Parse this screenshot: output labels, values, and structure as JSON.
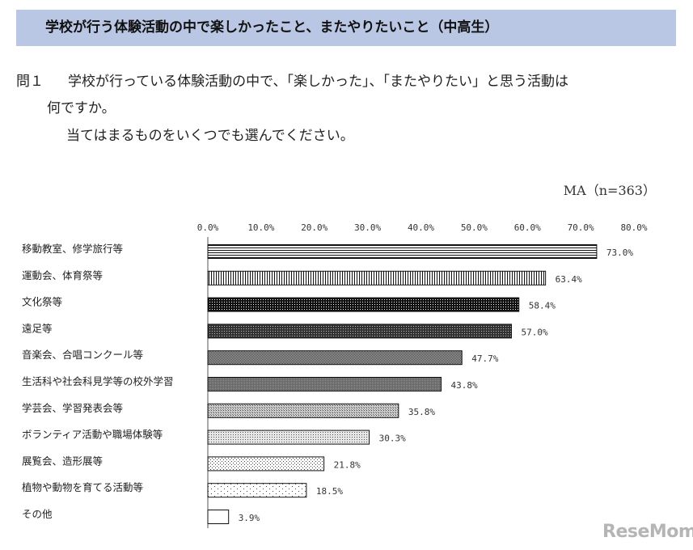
{
  "header": {
    "title": "学校が行う体験活動の中で楽しかったこと、またやりたいこと（中高生）"
  },
  "question": {
    "number": "問１",
    "line1": "学校が行っている体験活動の中で、「楽しかった」、「またやりたい」と思う活動は",
    "line2": "何ですか。",
    "line3": "当てはまるものをいくつでも選んでください。"
  },
  "meta": {
    "sample_note": "MA（n=363）"
  },
  "branding": {
    "logo_text": "ReseMom"
  },
  "colors": {
    "banner": "#b9c7e4",
    "bar_stroke": "#111111",
    "bar_dark": "#1a1a1a"
  },
  "chart_data": {
    "type": "bar",
    "orientation": "horizontal",
    "categories": [
      "移動教室、修学旅行等",
      "運動会、体育祭等",
      "文化祭等",
      "遠足等",
      "音楽会、合唱コンクール等",
      "生活科や社会科見学等の校外学習",
      "学芸会、学習発表会等",
      "ボランティア活動や職場体験等",
      "展覧会、造形展等",
      "植物や動物を育てる活動等",
      "その他"
    ],
    "values": [
      73.0,
      63.4,
      58.4,
      57.0,
      47.7,
      43.8,
      35.8,
      30.3,
      21.8,
      18.5,
      3.9
    ],
    "value_labels": [
      "73.0%",
      "63.4%",
      "58.4%",
      "57.0%",
      "47.7%",
      "43.8%",
      "35.8%",
      "30.3%",
      "21.8%",
      "18.5%",
      "3.9%"
    ],
    "patterns": [
      "hstripes",
      "vstripes",
      "dense-dots",
      "dense-dots-2",
      "checker",
      "dark-grid",
      "medium-dots",
      "fine-dots",
      "light-dots",
      "sparse-dots",
      "none"
    ],
    "xlim": [
      0,
      80
    ],
    "xticks": [
      0,
      10,
      20,
      30,
      40,
      50,
      60,
      70,
      80
    ],
    "xtick_labels": [
      "0.0%",
      "10.0%",
      "20.0%",
      "30.0%",
      "40.0%",
      "50.0%",
      "60.0%",
      "70.0%",
      "80.0%"
    ],
    "axis_position": "top",
    "grid": false,
    "legend": "none"
  }
}
